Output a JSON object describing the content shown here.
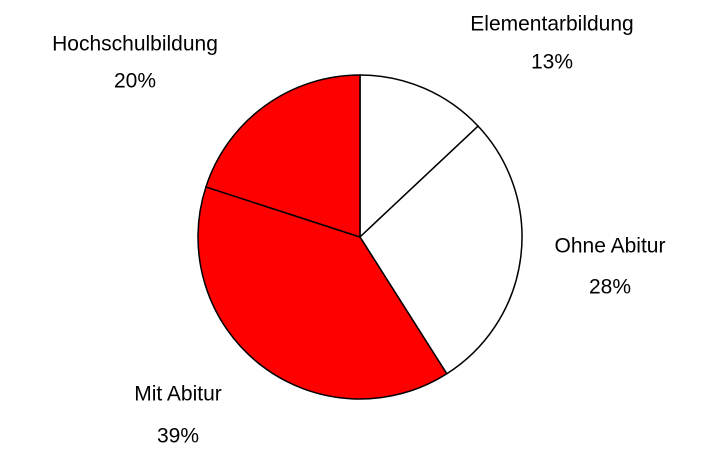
{
  "chart_data": {
    "type": "pie",
    "categories": [
      "Elementarbildung",
      "Ohne Abitur",
      "Mit Abitur",
      "Hochschulbildung"
    ],
    "values": [
      13,
      28,
      39,
      20
    ],
    "value_labels": [
      "13%",
      "28%",
      "39%",
      "20%"
    ],
    "colors": [
      "#ffffff",
      "#ffffff",
      "#ff0000",
      "#ff0000"
    ]
  }
}
